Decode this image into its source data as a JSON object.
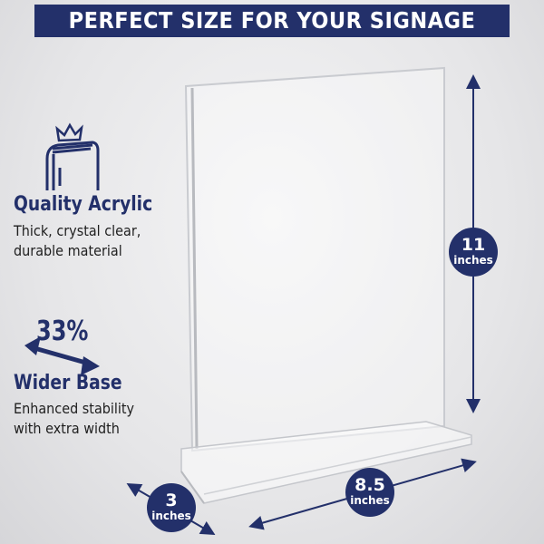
{
  "banner": {
    "title": "PERFECT SIZE FOR YOUR SIGNAGE"
  },
  "features": [
    {
      "icon": "acrylic-sign-crown-icon",
      "title": "Quality Acrylic",
      "lines": [
        "Thick, crystal clear,",
        "durable material"
      ]
    },
    {
      "icon": "double-arrow-icon",
      "stat": "33%",
      "title": "Wider Base",
      "lines": [
        "Enhanced stability",
        "with extra width"
      ]
    }
  ],
  "dimensions": {
    "height": {
      "value": "11",
      "unit": "inches"
    },
    "width": {
      "value": "8.5",
      "unit": "inches"
    },
    "depth": {
      "value": "3",
      "unit": "inches"
    }
  },
  "colors": {
    "accent": "#23306a"
  }
}
